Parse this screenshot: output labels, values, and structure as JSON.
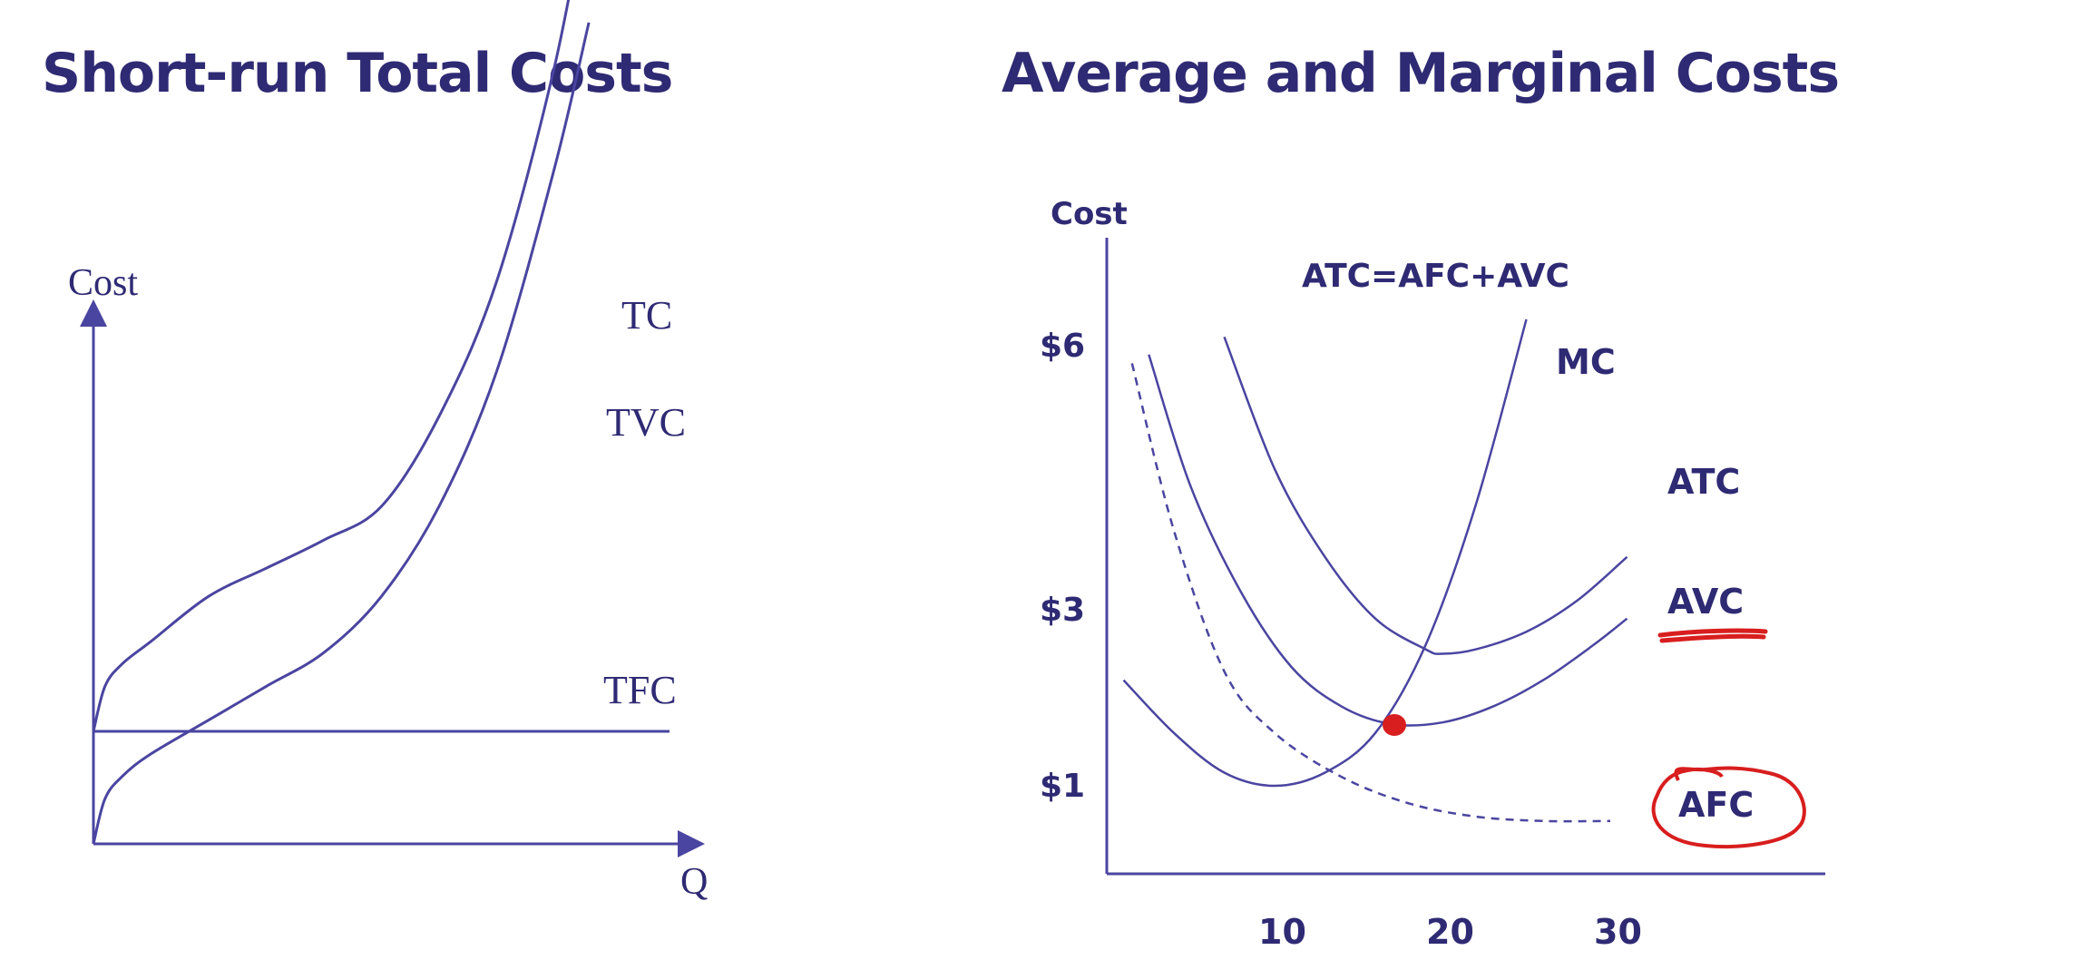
{
  "slide": {
    "left_title": "Short-run Total Costs",
    "right_title": "Average and Marginal Costs"
  },
  "colors": {
    "ink": "#2e2a73",
    "annotation": "#d81e1e"
  },
  "chart_data": [
    {
      "type": "line",
      "title": "Short-run Total Costs",
      "xlabel": "Q",
      "ylabel": "Cost",
      "grid": false,
      "series": [
        {
          "name": "TC",
          "x": [
            0,
            0.2,
            0.5,
            1,
            2,
            3,
            4,
            5,
            6,
            7,
            8,
            8.6
          ],
          "y": [
            1.0,
            1.4,
            1.6,
            1.8,
            2.2,
            2.45,
            2.7,
            3.0,
            3.8,
            5.0,
            6.9,
            8.5
          ]
        },
        {
          "name": "TVC",
          "x": [
            0,
            0.2,
            0.5,
            1,
            2,
            3,
            4,
            5,
            6,
            7,
            8,
            8.6
          ],
          "y": [
            0,
            0.4,
            0.6,
            0.8,
            1.1,
            1.4,
            1.7,
            2.2,
            3.0,
            4.2,
            6.0,
            7.3
          ]
        },
        {
          "name": "TFC",
          "x": [
            0,
            10
          ],
          "y": [
            1.0,
            1.0
          ]
        }
      ]
    },
    {
      "type": "line",
      "title": "Average and Marginal Costs",
      "xlabel": "",
      "ylabel": "Cost",
      "annotation": "ATC=AFC+AVC",
      "x_ticks": [
        "10",
        "20",
        "30"
      ],
      "y_ticks": [
        "$1",
        "$3",
        "$6"
      ],
      "grid": false,
      "series": [
        {
          "name": "MC",
          "x": [
            1,
            4,
            7,
            10,
            13,
            16,
            19,
            22,
            25
          ],
          "y": [
            2.2,
            1.6,
            1.15,
            1.0,
            1.15,
            1.6,
            2.6,
            4.2,
            6.3
          ]
        },
        {
          "name": "ATC",
          "x": [
            7,
            10,
            13,
            16,
            19,
            20,
            22,
            25,
            28,
            31
          ],
          "y": [
            6.1,
            4.6,
            3.6,
            2.9,
            2.55,
            2.5,
            2.55,
            2.75,
            3.1,
            3.6
          ]
        },
        {
          "name": "AVC",
          "x": [
            2.5,
            5,
            8,
            11,
            14,
            17,
            20,
            23,
            26,
            29,
            31
          ],
          "y": [
            5.9,
            4.4,
            3.2,
            2.35,
            1.9,
            1.7,
            1.72,
            1.9,
            2.2,
            2.6,
            2.9
          ]
        },
        {
          "name": "AFC",
          "style": "dashed",
          "x": [
            1.5,
            4,
            7,
            10,
            14,
            18,
            22,
            26,
            30
          ],
          "y": [
            5.8,
            3.9,
            2.3,
            1.6,
            1.1,
            0.8,
            0.65,
            0.6,
            0.6
          ]
        }
      ]
    }
  ]
}
